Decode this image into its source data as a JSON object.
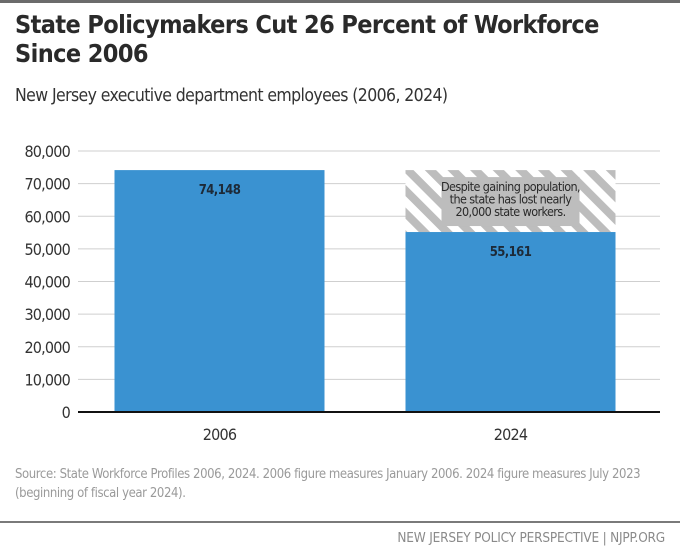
{
  "header": {
    "title": "State Policymakers Cut 26 Percent of Workforce Since 2006",
    "subtitle": "New Jersey executive department employees (2006, 2024)"
  },
  "chart_data": {
    "type": "bar",
    "title": "State Policymakers Cut 26 Percent of Workforce Since 2006",
    "subtitle": "New Jersey executive department employees (2006, 2024)",
    "categories": [
      "2006",
      "2024"
    ],
    "values": [
      74148,
      55161
    ],
    "value_labels": [
      "74,148",
      "55,161"
    ],
    "xlabel": "",
    "ylabel": "",
    "ylim": [
      0,
      80000
    ],
    "yticks": [
      0,
      10000,
      20000,
      30000,
      40000,
      50000,
      60000,
      70000,
      80000
    ],
    "ytick_labels": [
      "0",
      "10,000",
      "20,000",
      "30,000",
      "40,000",
      "50,000",
      "60,000",
      "70,000",
      "80,000"
    ],
    "grid": true,
    "bar_color": "#3a92d1",
    "loss_region": {
      "category": "2024",
      "from": 55161,
      "to": 74148,
      "pattern": "gray-hatched",
      "annotation": "Despite gaining population, the state has lost nearly 20,000 state workers."
    }
  },
  "annotation_lines": [
    "Despite gaining population,",
    "the state has lost nearly",
    "20,000 state workers."
  ],
  "source": "Source: State Workforce Profiles 2006, 2024. 2006 figure measures January 2006. 2024 figure measures July 2023 (beginning of fiscal year 2024).",
  "footer": "NEW JERSEY POLICY PERSPECTIVE | NJPP.ORG"
}
